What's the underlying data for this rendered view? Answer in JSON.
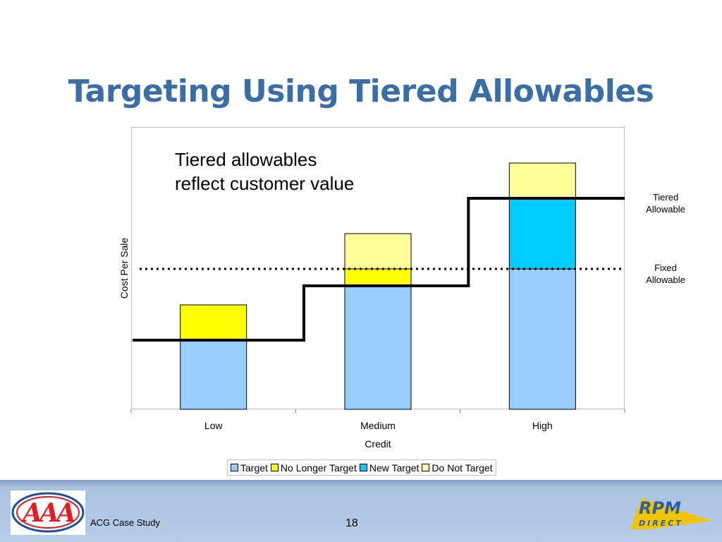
{
  "slide": {
    "title": "Targeting Using Tiered Allowables",
    "footer_text": "ACG Case Study",
    "page_number": "18"
  },
  "annotation": "Tiered allowables\nreflect customer value",
  "side_labels": {
    "tiered": "Tiered\nAllowable",
    "fixed": "Fixed\nAllowable"
  },
  "logos": {
    "left": "AAA",
    "right_top": "RPM",
    "right_bottom": "DIRECT"
  },
  "colors": {
    "title": "#3a6ea5",
    "target": "#99ccff",
    "no_longer_target": "#ffff00",
    "new_target": "#00ccff",
    "do_not_target": "#ffff99",
    "aaa_red": "#e31b23",
    "aaa_blue": "#1d4f9c",
    "rpm_blue": "#2e5fa3",
    "rpm_gold": "#f2c400"
  },
  "chart_data": {
    "type": "bar",
    "stacked": true,
    "categories": [
      "Low",
      "Medium",
      "High"
    ],
    "series": [
      {
        "name": "Target",
        "values": [
          98,
          175,
          199
        ],
        "color": "#99ccff"
      },
      {
        "name": "No Longer Target",
        "values": [
          50,
          24,
          0
        ],
        "color": "#ffff00"
      },
      {
        "name": "New Target",
        "values": [
          0,
          0,
          100
        ],
        "color": "#00ccff"
      },
      {
        "name": "Do Not Target",
        "values": [
          0,
          50,
          50
        ],
        "color": "#ffff99"
      }
    ],
    "overlays": [
      {
        "name": "Tiered Allowable",
        "style": "solid",
        "values": [
          98,
          175,
          299
        ]
      },
      {
        "name": "Fixed Allowable",
        "style": "dotted",
        "value": 199
      }
    ],
    "xlabel": "Credit",
    "ylabel": "Cost Per Sale",
    "ylim": [
      0,
      400
    ],
    "y_ticks_shown": false,
    "grid": false,
    "legend_position": "bottom"
  }
}
